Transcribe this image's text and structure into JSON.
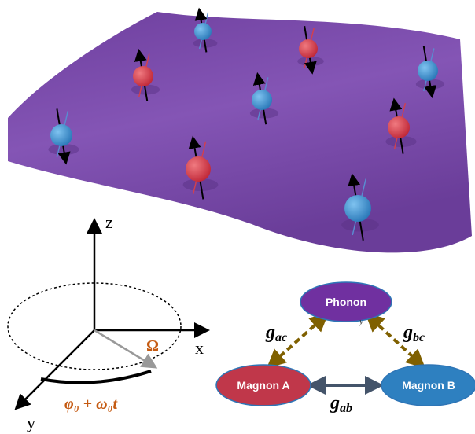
{
  "axes": {
    "z": "z",
    "x": "x",
    "y": "y",
    "omega": "Ω",
    "phase": "φ₀ + ω₀t"
  },
  "coupling_diagram": {
    "nodes": [
      {
        "label": "Phonon"
      },
      {
        "label": "Magnon A"
      },
      {
        "label": "Magnon B"
      }
    ],
    "stray_label": "y",
    "edges": [
      {
        "symbol": "g",
        "subscript": "ac"
      },
      {
        "symbol": "g",
        "subscript": "bc"
      },
      {
        "symbol": "g",
        "subscript": "ab"
      }
    ]
  }
}
